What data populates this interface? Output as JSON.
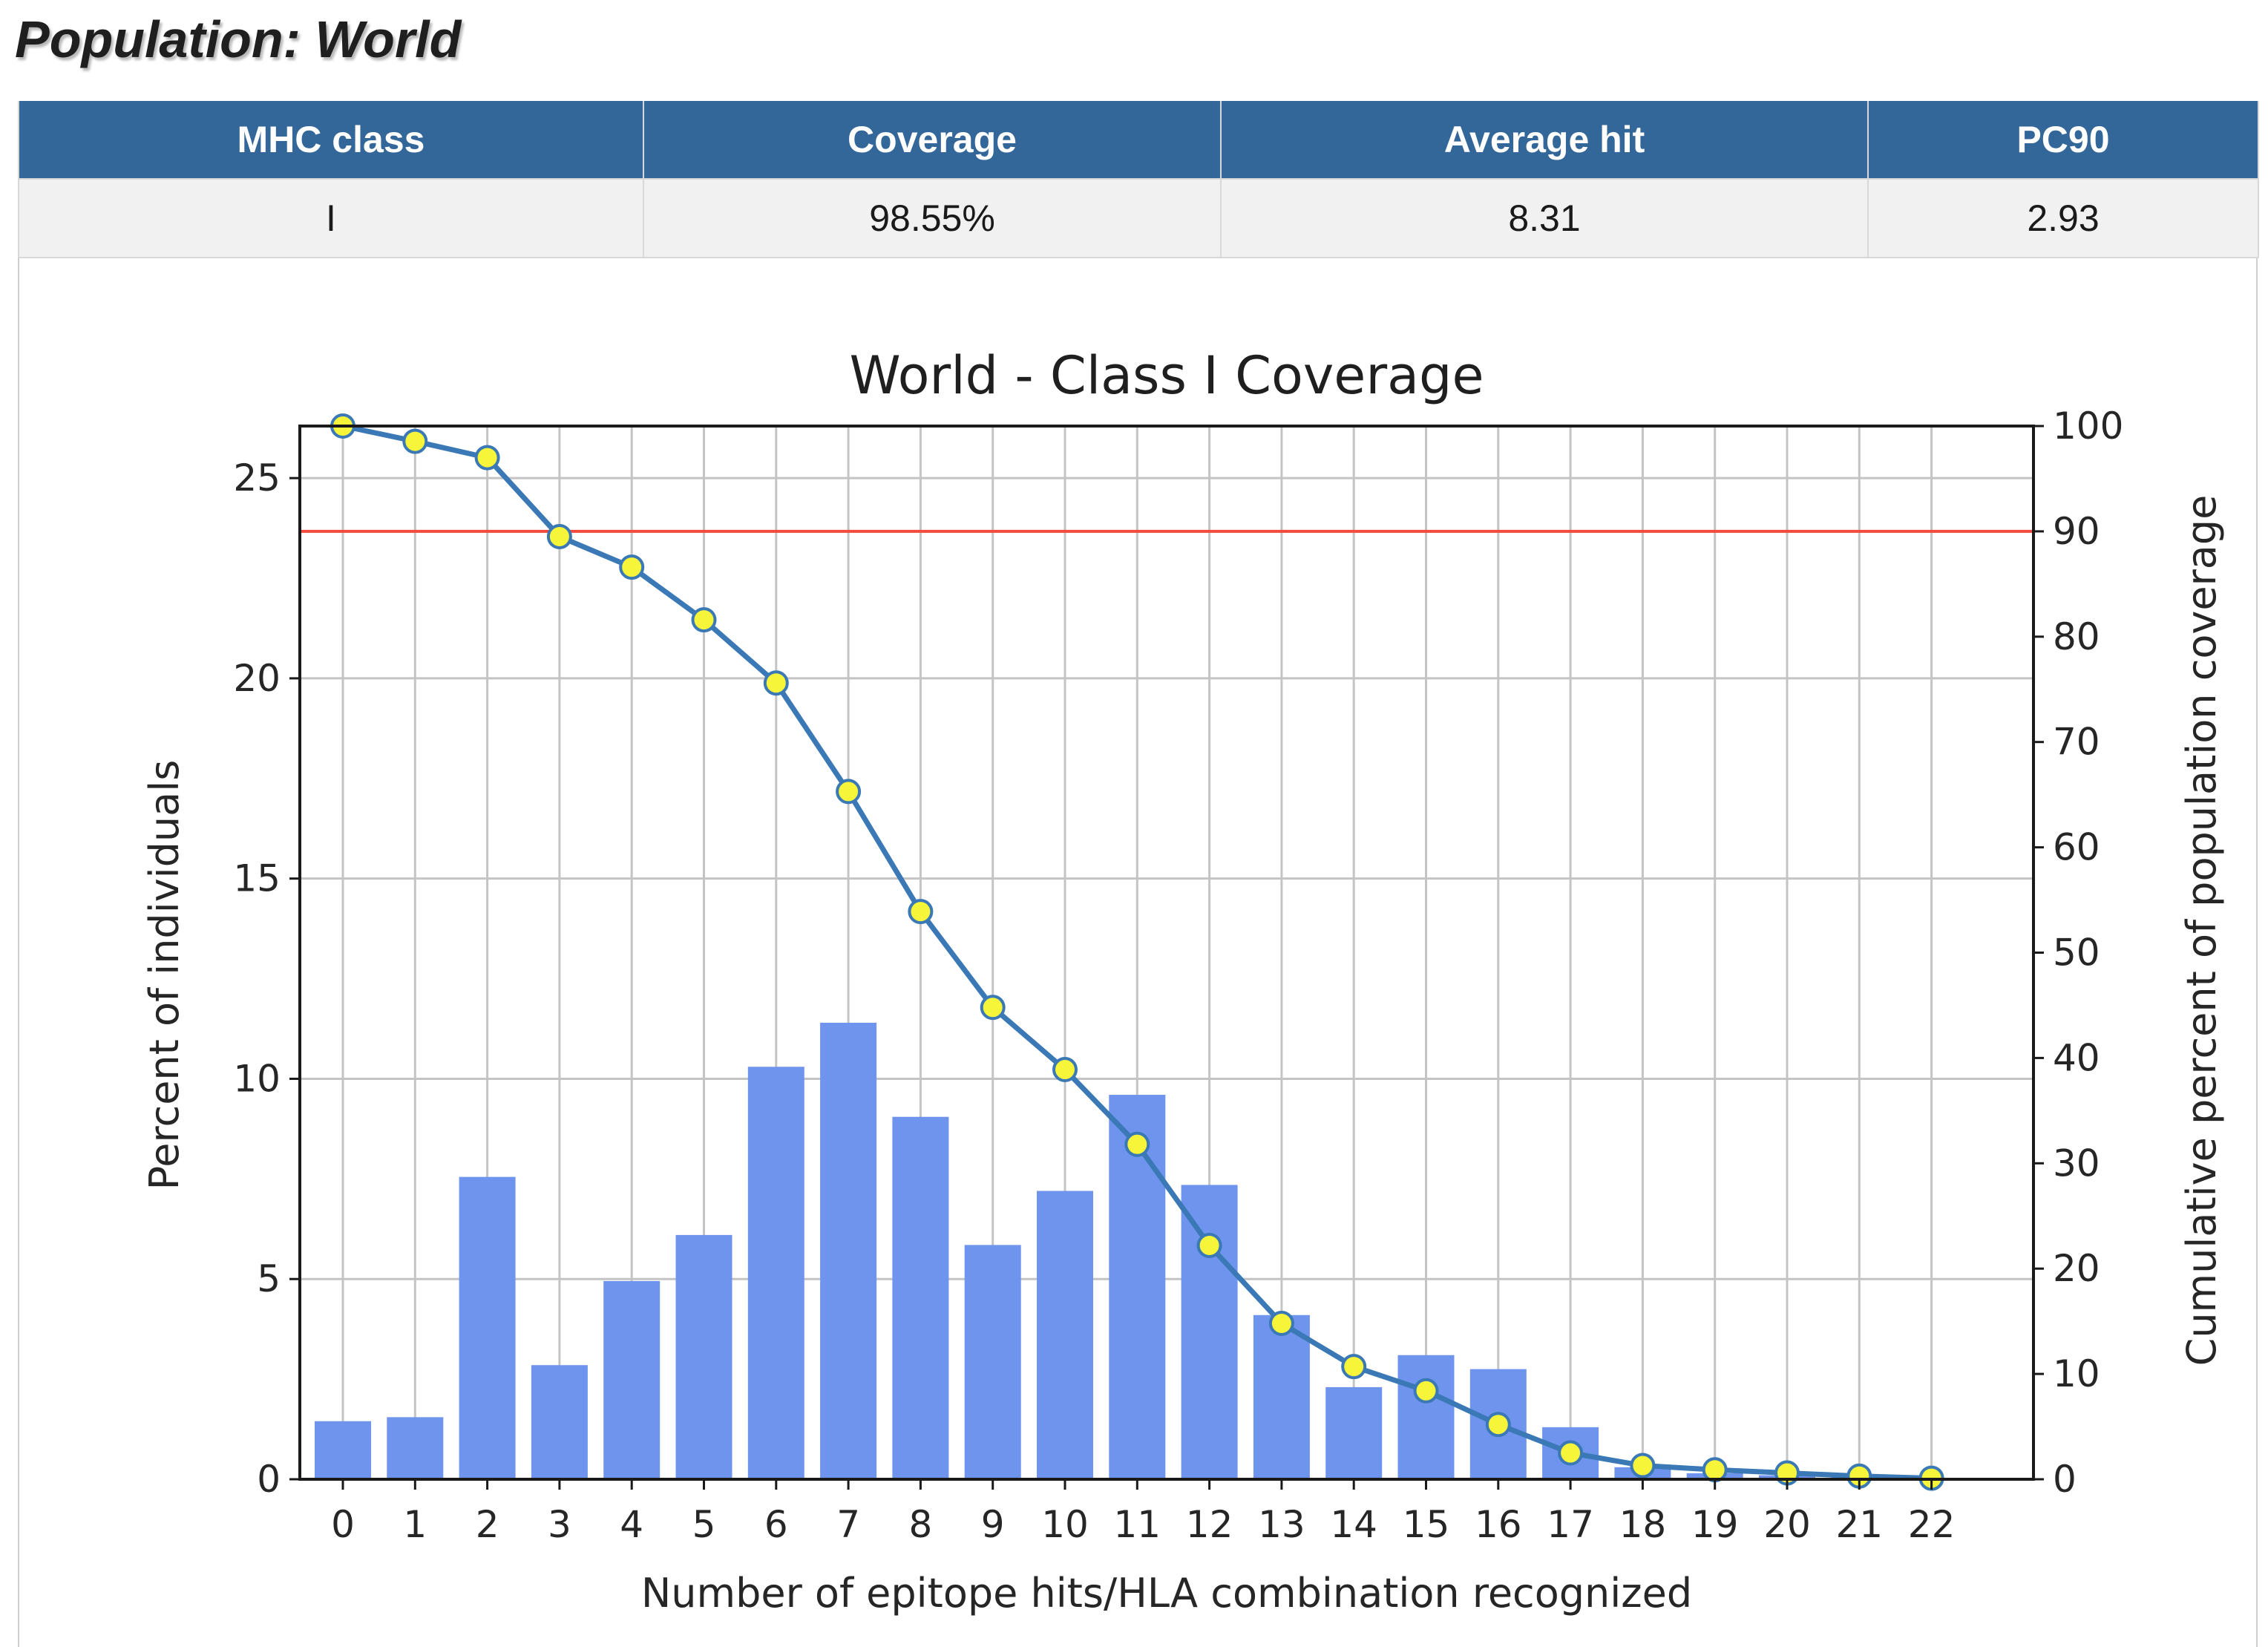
{
  "page": {
    "title": "Population: World"
  },
  "summary_table": {
    "headers": [
      "MHC class",
      "Coverage",
      "Average hit",
      "PC90"
    ],
    "rows": [
      [
        "I",
        "98.55%",
        "8.31",
        "2.93"
      ]
    ]
  },
  "chart_data": {
    "type": "bar",
    "title": "World - Class I Coverage",
    "xlabel": "Number of epitope hits/HLA combination recognized",
    "ylabel": "Percent of individuals",
    "y2label": "Cumulative percent of population coverage",
    "categories": [
      "0",
      "1",
      "2",
      "3",
      "4",
      "5",
      "6",
      "7",
      "8",
      "9",
      "10",
      "11",
      "12",
      "13",
      "14",
      "15",
      "16",
      "17",
      "18",
      "19",
      "20",
      "21",
      "22"
    ],
    "ylim": [
      0,
      26.3
    ],
    "y2lim": [
      0,
      100
    ],
    "yticks": [
      0,
      5,
      10,
      15,
      20,
      25
    ],
    "y2ticks": [
      0,
      10,
      20,
      30,
      40,
      50,
      60,
      70,
      80,
      90,
      100
    ],
    "grid": true,
    "series": [
      {
        "kind": "bar",
        "axis": "left",
        "color": "#6f94ee",
        "values": [
          1.45,
          1.55,
          7.55,
          2.85,
          4.95,
          6.1,
          10.3,
          11.4,
          9.05,
          5.85,
          7.2,
          9.6,
          7.35,
          4.1,
          2.3,
          3.1,
          2.75,
          1.3,
          0.3,
          0.15,
          0.1,
          0.05,
          0.02
        ]
      },
      {
        "kind": "line",
        "axis": "right",
        "color": "#3a78b6",
        "marker_color": "#f6f53a",
        "values": [
          100,
          98.55,
          97.0,
          89.5,
          86.6,
          81.6,
          75.6,
          65.3,
          53.9,
          44.8,
          38.9,
          31.8,
          22.2,
          14.8,
          10.7,
          8.4,
          5.2,
          2.5,
          1.3,
          0.9,
          0.6,
          0.3,
          0.1
        ]
      },
      {
        "kind": "hline",
        "axis": "right",
        "color": "#f24a3c",
        "value": 90
      }
    ]
  }
}
